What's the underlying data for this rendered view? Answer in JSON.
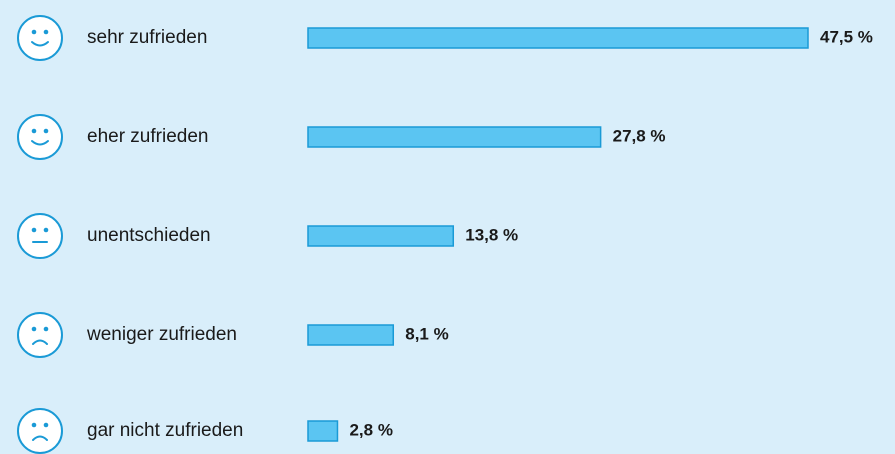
{
  "chart_data": {
    "type": "bar",
    "orientation": "horizontal",
    "categories": [
      "sehr zufrieden",
      "eher zufrieden",
      "unentschieden",
      "weniger zufrieden",
      "gar nicht zufrieden"
    ],
    "values": [
      47.5,
      27.8,
      13.8,
      8.1,
      2.8
    ],
    "value_labels": [
      "47,5 %",
      "27,8 %",
      "13,8 %",
      "8,1 %",
      "2,8 %"
    ],
    "color": "#5bc5f2"
  }
}
